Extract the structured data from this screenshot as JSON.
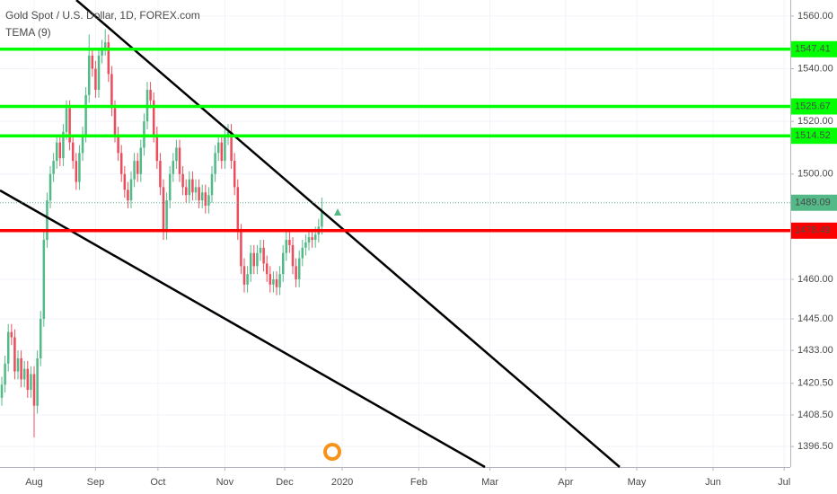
{
  "chart_data": {
    "type": "candlestick",
    "title": "Gold Spot / U.S. Dollar, 1D, FOREX.com",
    "indicator": "TEMA (9)",
    "up_color": "#53b987",
    "down_color": "#eb4d5c",
    "open": [
      1415,
      1420,
      1428,
      1440,
      1438,
      1425,
      1430,
      1422,
      1426,
      1418,
      1424,
      1412,
      1430,
      1445,
      1475,
      1490,
      1500,
      1505,
      1512,
      1506,
      1516,
      1525,
      1512,
      1505,
      1497,
      1508,
      1515,
      1530,
      1545,
      1540,
      1532,
      1545,
      1548,
      1550,
      1538,
      1525,
      1515,
      1508,
      1500,
      1494,
      1490,
      1498,
      1505,
      1500,
      1510,
      1520,
      1532,
      1528,
      1515,
      1505,
      1495,
      1478,
      1490,
      1500,
      1505,
      1510,
      1500,
      1495,
      1492,
      1498,
      1493,
      1495,
      1490,
      1493,
      1488,
      1492,
      1500,
      1508,
      1512,
      1505,
      1514,
      1516,
      1505,
      1495,
      1478,
      1465,
      1458,
      1462,
      1470,
      1465,
      1470,
      1472,
      1466,
      1462,
      1458,
      1460,
      1457,
      1462,
      1470,
      1475,
      1473,
      1465,
      1460,
      1468,
      1472,
      1474,
      1476,
      1475,
      1477,
      1480
    ],
    "high": [
      1423,
      1431,
      1443,
      1443,
      1441,
      1433,
      1433,
      1429,
      1429,
      1427,
      1427,
      1433,
      1448,
      1478,
      1493,
      1503,
      1508,
      1515,
      1515,
      1519,
      1528,
      1528,
      1515,
      1508,
      1511,
      1518,
      1533,
      1553,
      1548,
      1543,
      1548,
      1551,
      1555,
      1553,
      1541,
      1528,
      1518,
      1511,
      1503,
      1497,
      1501,
      1508,
      1508,
      1513,
      1523,
      1535,
      1535,
      1531,
      1518,
      1508,
      1498,
      1493,
      1503,
      1508,
      1513,
      1513,
      1503,
      1498,
      1501,
      1501,
      1498,
      1498,
      1496,
      1496,
      1495,
      1503,
      1511,
      1515,
      1515,
      1517,
      1519,
      1519,
      1508,
      1498,
      1481,
      1468,
      1465,
      1473,
      1473,
      1473,
      1475,
      1475,
      1469,
      1465,
      1463,
      1463,
      1465,
      1473,
      1478,
      1478,
      1476,
      1468,
      1471,
      1475,
      1477,
      1479,
      1479,
      1480,
      1483,
      1491
    ],
    "low": [
      1412,
      1417,
      1425,
      1435,
      1422,
      1422,
      1419,
      1419,
      1415,
      1415,
      1400,
      1409,
      1427,
      1442,
      1472,
      1487,
      1497,
      1502,
      1503,
      1503,
      1513,
      1509,
      1502,
      1494,
      1494,
      1505,
      1512,
      1527,
      1537,
      1529,
      1529,
      1542,
      1545,
      1535,
      1522,
      1512,
      1505,
      1497,
      1491,
      1487,
      1487,
      1495,
      1497,
      1497,
      1507,
      1517,
      1525,
      1512,
      1502,
      1492,
      1475,
      1475,
      1487,
      1497,
      1502,
      1497,
      1492,
      1489,
      1489,
      1490,
      1490,
      1487,
      1487,
      1485,
      1485,
      1489,
      1497,
      1505,
      1502,
      1502,
      1511,
      1502,
      1492,
      1475,
      1462,
      1455,
      1455,
      1459,
      1462,
      1462,
      1467,
      1463,
      1459,
      1455,
      1455,
      1454,
      1454,
      1459,
      1467,
      1470,
      1462,
      1457,
      1457,
      1465,
      1469,
      1471,
      1472,
      1472,
      1474,
      1477
    ],
    "close": [
      1420,
      1428,
      1440,
      1438,
      1425,
      1430,
      1422,
      1426,
      1418,
      1424,
      1412,
      1430,
      1445,
      1475,
      1490,
      1500,
      1505,
      1512,
      1506,
      1516,
      1525,
      1512,
      1505,
      1497,
      1508,
      1515,
      1530,
      1545,
      1540,
      1532,
      1545,
      1548,
      1550,
      1538,
      1525,
      1515,
      1508,
      1500,
      1494,
      1490,
      1498,
      1505,
      1500,
      1510,
      1520,
      1532,
      1528,
      1515,
      1505,
      1495,
      1478,
      1490,
      1500,
      1505,
      1510,
      1500,
      1495,
      1492,
      1498,
      1493,
      1495,
      1490,
      1493,
      1488,
      1492,
      1500,
      1508,
      1512,
      1505,
      1514,
      1516,
      1505,
      1495,
      1478,
      1465,
      1458,
      1462,
      1470,
      1465,
      1470,
      1472,
      1466,
      1462,
      1458,
      1460,
      1457,
      1462,
      1470,
      1475,
      1473,
      1465,
      1460,
      1468,
      1472,
      1474,
      1476,
      1475,
      1477,
      1480,
      1486
    ],
    "xlim": [
      -0.56,
      243.9
    ],
    "xticks": [
      {
        "value": 10,
        "label": "Aug"
      },
      {
        "value": 29,
        "label": "Sep"
      },
      {
        "value": 48.3,
        "label": "Oct"
      },
      {
        "value": 69,
        "label": "Nov"
      },
      {
        "value": 87.5,
        "label": "Dec"
      },
      {
        "value": 105.3,
        "label": "2020"
      },
      {
        "value": 129,
        "label": "Feb"
      },
      {
        "value": 151,
        "label": "Mar"
      },
      {
        "value": 174.4,
        "label": "Apr"
      },
      {
        "value": 196.4,
        "label": "May"
      },
      {
        "value": 220,
        "label": "Jun"
      },
      {
        "value": 242,
        "label": "Jul"
      }
    ],
    "ylim": [
      1388.7,
      1566.1
    ],
    "yticks": [
      {
        "value": 1560,
        "label": "1560.00"
      },
      {
        "value": 1540,
        "label": "1540.00"
      },
      {
        "value": 1520,
        "label": "1520.00"
      },
      {
        "value": 1500,
        "label": "1500.00"
      },
      {
        "value": 1460,
        "label": "1460.00"
      },
      {
        "value": 1445,
        "label": "1445.00"
      },
      {
        "value": 1433,
        "label": "1433.00"
      },
      {
        "value": 1420.5,
        "label": "1420.50"
      },
      {
        "value": 1408.5,
        "label": "1408.50"
      },
      {
        "value": 1396.5,
        "label": "1396.50"
      }
    ],
    "levels": [
      {
        "value": 1547.41,
        "color": "#00ff00"
      },
      {
        "value": 1525.67,
        "color": "#00ff00"
      },
      {
        "value": 1514.52,
        "color": "#00ff00"
      },
      {
        "value": 1478.49,
        "color": "#ff0000"
      },
      {
        "value": 1489.09,
        "color": "#53b987",
        "style": "dotted"
      }
    ]
  }
}
